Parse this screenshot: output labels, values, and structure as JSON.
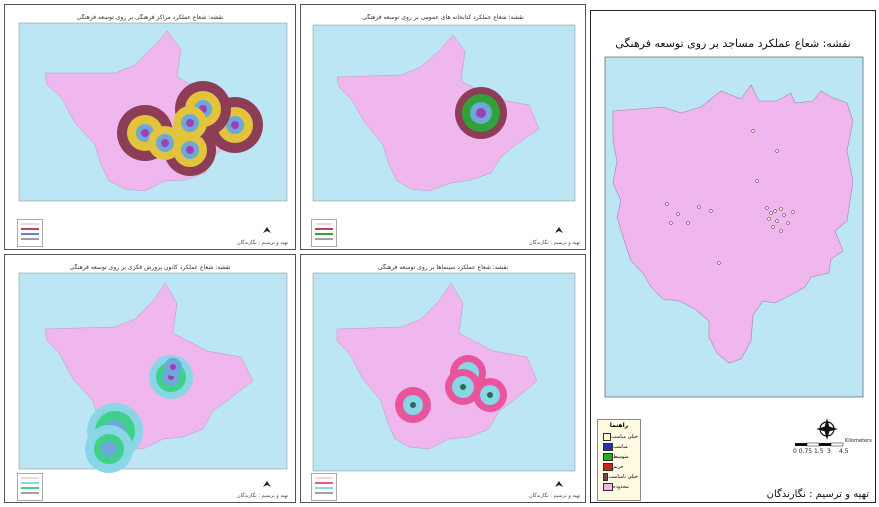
{
  "main_map": {
    "title": "نقشه: شعاع عملکرد مساجد بر روی توسعه فرهنگی",
    "legend": {
      "title": "راهنما",
      "items": [
        {
          "label": "خیلی مناسب",
          "color": "#fff6d8"
        },
        {
          "label": "مناسب",
          "color": "#2233aa"
        },
        {
          "label": "متوسط",
          "color": "#22aa33"
        },
        {
          "label": "حریم",
          "color": "#cc2222"
        },
        {
          "label": "خیلی نامناسب",
          "color": "#774444"
        },
        {
          "label": "محدوده",
          "color": "#f0b4ee"
        }
      ]
    },
    "scale": {
      "ticks": [
        "0 0.75 1.5",
        "3",
        "4.5"
      ],
      "unit": "Kilometers"
    },
    "credit": "تهیه و ترسیم : نگارندگان"
  },
  "small_maps": [
    {
      "title": "نقشه: شعاع عملکرد مراکز فرهنگی بر روی توسعه فرهنگی",
      "credit": "تهیه و ترسیم : نگارندگان"
    },
    {
      "title": "نقشه: شعاع عملکرد کتابخانه های عمومی بر روی توسعه فرهنگی",
      "credit": "تهیه و ترسیم : نگارندگان"
    },
    {
      "title": "نقشه: شعاع عملکرد کانون پرورش فکری بر روی توسعه فرهنگی",
      "credit": "تهیه و ترسیم : نگارندگان"
    },
    {
      "title": "نقشه: شعاع عملکرد سینماها بر روی توسعه فرهنگی",
      "credit": "تهیه و ترسیم : نگارندگان"
    }
  ],
  "colors": {
    "water": "#bde6f5",
    "city": "#efb7ee",
    "city_stroke": "#a383a8"
  }
}
